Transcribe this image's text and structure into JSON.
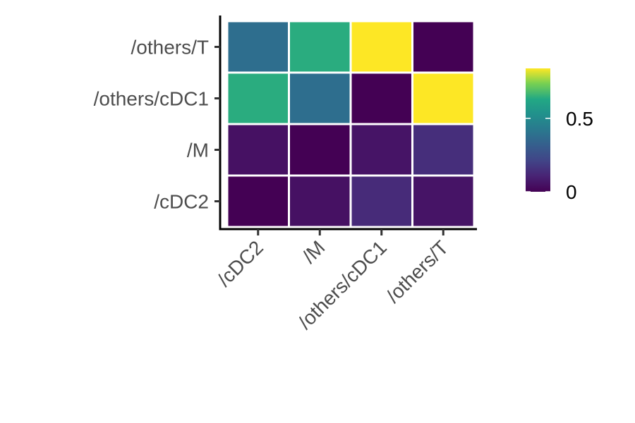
{
  "chart_data": {
    "type": "heatmap",
    "title": "",
    "xlabel": "",
    "ylabel": "",
    "x_categories": [
      "/cDC2",
      "/M",
      "/others/cDC1",
      "/others/T"
    ],
    "y_categories": [
      "/others/T",
      "/others/cDC1",
      "/M",
      "/cDC2"
    ],
    "values": [
      [
        0.38,
        0.64,
        0.84,
        0.0
      ],
      [
        0.64,
        0.38,
        0.0,
        0.84
      ],
      [
        0.05,
        0.0,
        0.06,
        0.14
      ],
      [
        0.0,
        0.05,
        0.13,
        0.06
      ]
    ],
    "colorbar": {
      "range": [
        0,
        0.84
      ],
      "ticks": [
        0,
        0.5
      ],
      "tick_labels": [
        "0",
        "0.5"
      ],
      "colormap": "viridis"
    },
    "grid": false,
    "legend_position": "right"
  }
}
